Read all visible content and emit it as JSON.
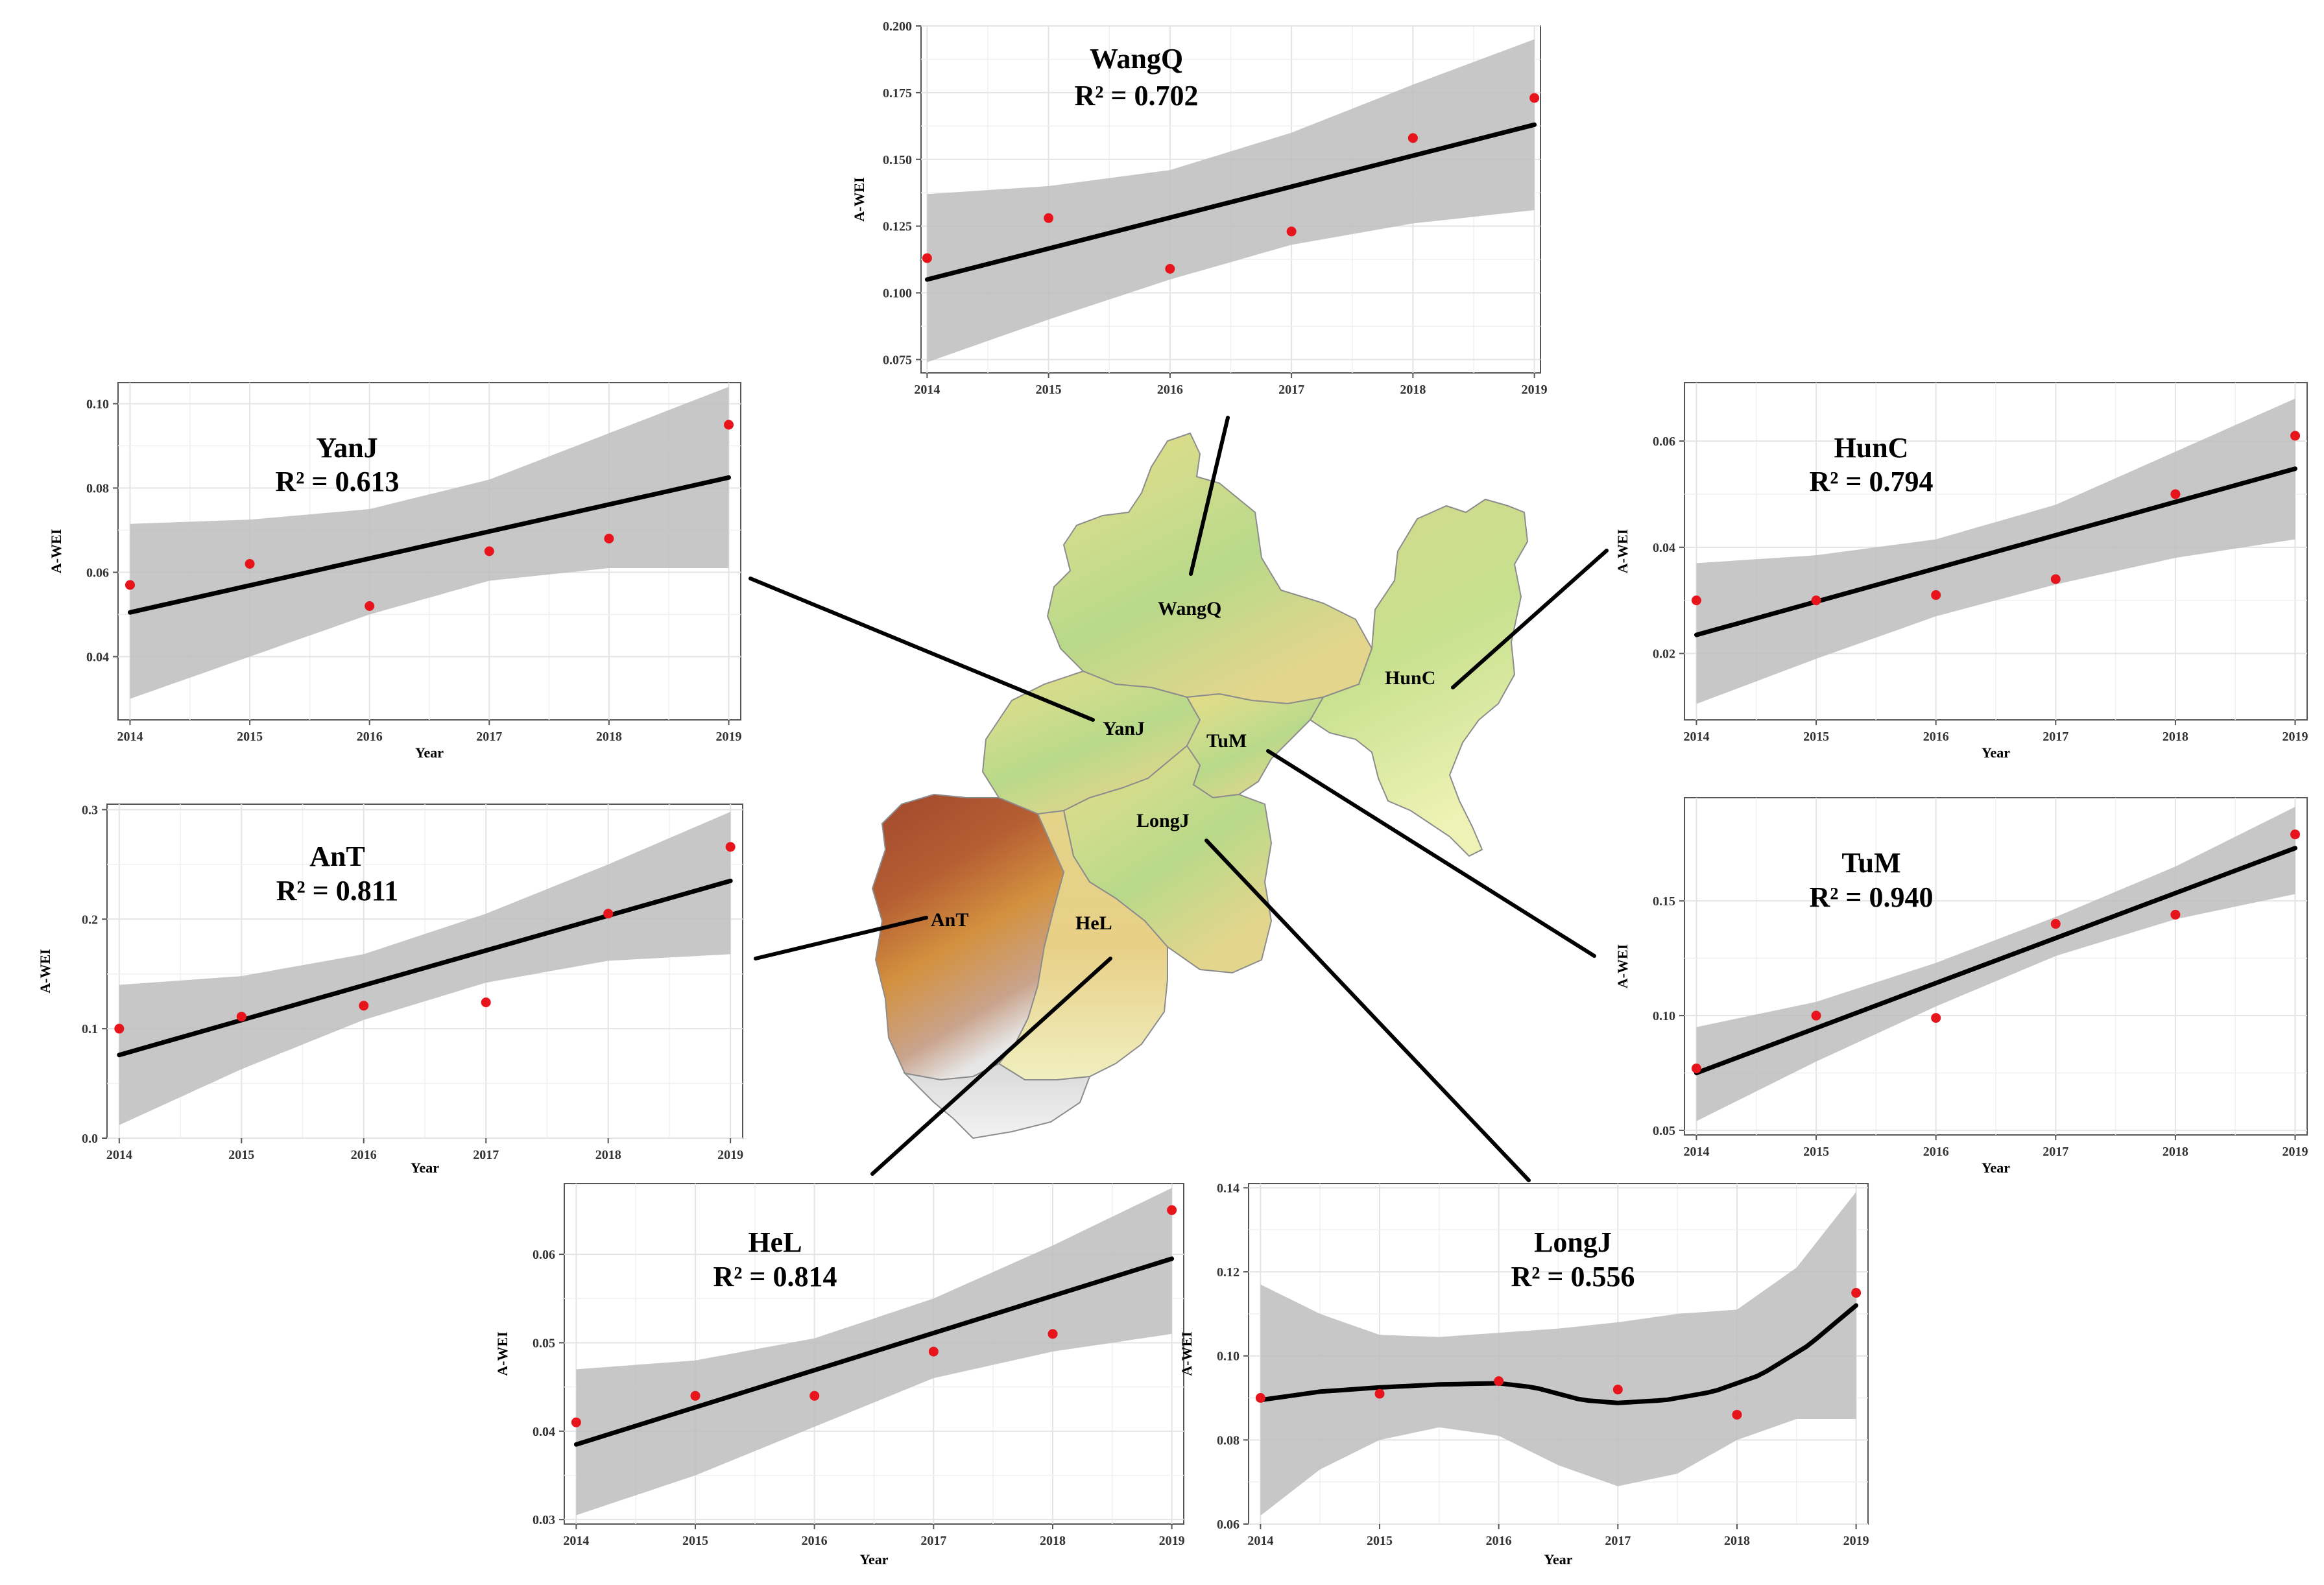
{
  "chart_data": [
    {
      "id": "wangq",
      "type": "scatter",
      "title": "WangQ",
      "r2_label": "R² = 0.702",
      "xlabel": "",
      "ylabel": "A-WEI",
      "x": [
        2014,
        2015,
        2016,
        2017,
        2018,
        2019
      ],
      "values": [
        0.113,
        0.128,
        0.109,
        0.123,
        0.158,
        0.173
      ],
      "fit": [
        [
          2014,
          0.105
        ],
        [
          2019,
          0.163
        ]
      ],
      "ci_lower": [
        [
          2014,
          0.074
        ],
        [
          2015,
          0.09
        ],
        [
          2016,
          0.105
        ],
        [
          2017,
          0.118
        ],
        [
          2018,
          0.126
        ],
        [
          2019,
          0.131
        ]
      ],
      "ci_upper": [
        [
          2014,
          0.137
        ],
        [
          2015,
          0.14
        ],
        [
          2016,
          0.146
        ],
        [
          2017,
          0.16
        ],
        [
          2018,
          0.178
        ],
        [
          2019,
          0.195
        ]
      ],
      "xlim": [
        2013.95,
        2019.05
      ],
      "ylim": [
        0.07,
        0.2
      ],
      "yticks": [
        0.075,
        0.1,
        0.125,
        0.15,
        0.175,
        0.2
      ],
      "ytick_labels": [
        "0.075",
        "0.100",
        "0.125",
        "0.150",
        "0.175",
        "0.200"
      ],
      "xticks": [
        2014,
        2015,
        2016,
        2017,
        2018,
        2019
      ],
      "xtick_labels": [
        "2014",
        "2015",
        "2016",
        "2017",
        "2018",
        "2019"
      ]
    },
    {
      "id": "yanj",
      "type": "scatter",
      "title": "YanJ",
      "r2_label": "R² = 0.613",
      "xlabel": "Year",
      "ylabel": "A-WEI",
      "x": [
        2014,
        2015,
        2016,
        2017,
        2018,
        2019
      ],
      "values": [
        0.057,
        0.062,
        0.052,
        0.065,
        0.068,
        0.095
      ],
      "fit": [
        [
          2014,
          0.0505
        ],
        [
          2019,
          0.0825
        ]
      ],
      "ci_lower": [
        [
          2014,
          0.03
        ],
        [
          2015,
          0.04
        ],
        [
          2016,
          0.05
        ],
        [
          2017,
          0.058
        ],
        [
          2018,
          0.061
        ],
        [
          2019,
          0.061
        ]
      ],
      "ci_upper": [
        [
          2014,
          0.0715
        ],
        [
          2015,
          0.0725
        ],
        [
          2016,
          0.075
        ],
        [
          2017,
          0.082
        ],
        [
          2018,
          0.093
        ],
        [
          2019,
          0.104
        ]
      ],
      "xlim": [
        2013.9,
        2019.1
      ],
      "ylim": [
        0.025,
        0.105
      ],
      "yticks": [
        0.04,
        0.06,
        0.08,
        0.1
      ],
      "ytick_labels": [
        "0.04",
        "0.06",
        "0.08",
        "0.10"
      ],
      "xticks": [
        2014,
        2015,
        2016,
        2017,
        2018,
        2019
      ],
      "xtick_labels": [
        "2014",
        "2015",
        "2016",
        "2017",
        "2018",
        "2019"
      ]
    },
    {
      "id": "hunc",
      "type": "scatter",
      "title": "HunC",
      "r2_label": "R² = 0.794",
      "xlabel": "Year",
      "ylabel": "A-WEI",
      "x": [
        2014,
        2015,
        2016,
        2017,
        2018,
        2019
      ],
      "values": [
        0.03,
        0.03,
        0.031,
        0.034,
        0.05,
        0.061
      ],
      "fit": [
        [
          2014,
          0.0235
        ],
        [
          2019,
          0.0548
        ]
      ],
      "ci_lower": [
        [
          2014,
          0.0105
        ],
        [
          2015,
          0.019
        ],
        [
          2016,
          0.027
        ],
        [
          2017,
          0.033
        ],
        [
          2018,
          0.038
        ],
        [
          2019,
          0.0415
        ]
      ],
      "ci_upper": [
        [
          2014,
          0.037
        ],
        [
          2015,
          0.0385
        ],
        [
          2016,
          0.0415
        ],
        [
          2017,
          0.048
        ],
        [
          2018,
          0.058
        ],
        [
          2019,
          0.068
        ]
      ],
      "xlim": [
        2013.9,
        2019.1
      ],
      "ylim": [
        0.0075,
        0.071
      ],
      "yticks": [
        0.02,
        0.04,
        0.06
      ],
      "ytick_labels": [
        "0.02",
        "0.04",
        "0.06"
      ],
      "xticks": [
        2014,
        2015,
        2016,
        2017,
        2018,
        2019
      ],
      "xtick_labels": [
        "2014",
        "2015",
        "2016",
        "2017",
        "2018",
        "2019"
      ]
    },
    {
      "id": "ant",
      "type": "scatter",
      "title": "AnT",
      "r2_label": "R² = 0.811",
      "xlabel": "Year",
      "ylabel": "A-WEI",
      "x": [
        2014,
        2015,
        2016,
        2017,
        2018,
        2019
      ],
      "values": [
        0.1,
        0.111,
        0.121,
        0.124,
        0.205,
        0.266
      ],
      "fit": [
        [
          2014,
          0.076
        ],
        [
          2019,
          0.235
        ]
      ],
      "ci_lower": [
        [
          2014,
          0.012
        ],
        [
          2015,
          0.063
        ],
        [
          2016,
          0.108
        ],
        [
          2017,
          0.142
        ],
        [
          2018,
          0.162
        ],
        [
          2019,
          0.168
        ]
      ],
      "ci_upper": [
        [
          2014,
          0.14
        ],
        [
          2015,
          0.148
        ],
        [
          2016,
          0.168
        ],
        [
          2017,
          0.205
        ],
        [
          2018,
          0.25
        ],
        [
          2019,
          0.298
        ]
      ],
      "xlim": [
        2013.9,
        2019.1
      ],
      "ylim": [
        0,
        0.305
      ],
      "yticks": [
        0,
        0.1,
        0.2,
        0.3
      ],
      "ytick_labels": [
        "0.0",
        "0.1",
        "0.2",
        "0.3"
      ],
      "xticks": [
        2014,
        2015,
        2016,
        2017,
        2018,
        2019
      ],
      "xtick_labels": [
        "2014",
        "2015",
        "2016",
        "2017",
        "2018",
        "2019"
      ]
    },
    {
      "id": "tum",
      "type": "scatter",
      "title": "TuM",
      "r2_label": "R² = 0.940",
      "xlabel": "Year",
      "ylabel": "A-WEI",
      "x": [
        2014,
        2015,
        2016,
        2017,
        2018,
        2019
      ],
      "values": [
        0.077,
        0.1,
        0.099,
        0.14,
        0.144,
        0.179
      ],
      "fit": [
        [
          2014,
          0.075
        ],
        [
          2019,
          0.173
        ]
      ],
      "ci_lower": [
        [
          2014,
          0.054
        ],
        [
          2015,
          0.08
        ],
        [
          2016,
          0.104
        ],
        [
          2017,
          0.126
        ],
        [
          2018,
          0.142
        ],
        [
          2019,
          0.153
        ]
      ],
      "ci_upper": [
        [
          2014,
          0.095
        ],
        [
          2015,
          0.106
        ],
        [
          2016,
          0.123
        ],
        [
          2017,
          0.143
        ],
        [
          2018,
          0.165
        ],
        [
          2019,
          0.191
        ]
      ],
      "xlim": [
        2013.9,
        2019.1
      ],
      "ylim": [
        0.048,
        0.195
      ],
      "yticks": [
        0.05,
        0.1,
        0.15
      ],
      "ytick_labels": [
        "0.05",
        "0.10",
        "0.15"
      ],
      "xticks": [
        2014,
        2015,
        2016,
        2017,
        2018,
        2019
      ],
      "xtick_labels": [
        "2014",
        "2015",
        "2016",
        "2017",
        "2018",
        "2019"
      ]
    },
    {
      "id": "hel",
      "type": "scatter",
      "title": "HeL",
      "r2_label": "R² = 0.814",
      "xlabel": "Year",
      "ylabel": "A-WEI",
      "x": [
        2014,
        2015,
        2016,
        2017,
        2018,
        2019
      ],
      "values": [
        0.041,
        0.044,
        0.044,
        0.049,
        0.051,
        0.065
      ],
      "fit": [
        [
          2014,
          0.0385
        ],
        [
          2019,
          0.0595
        ]
      ],
      "ci_lower": [
        [
          2014,
          0.0305
        ],
        [
          2015,
          0.035
        ],
        [
          2016,
          0.0405
        ],
        [
          2017,
          0.046
        ],
        [
          2018,
          0.049
        ],
        [
          2019,
          0.051
        ]
      ],
      "ci_upper": [
        [
          2014,
          0.047
        ],
        [
          2015,
          0.048
        ],
        [
          2016,
          0.0505
        ],
        [
          2017,
          0.055
        ],
        [
          2018,
          0.061
        ],
        [
          2019,
          0.0675
        ]
      ],
      "xlim": [
        2013.9,
        2019.1
      ],
      "ylim": [
        0.0295,
        0.068
      ],
      "yticks": [
        0.03,
        0.04,
        0.05,
        0.06
      ],
      "ytick_labels": [
        "0.03",
        "0.04",
        "0.05",
        "0.06"
      ],
      "xticks": [
        2014,
        2015,
        2016,
        2017,
        2018,
        2019
      ],
      "xtick_labels": [
        "2014",
        "2015",
        "2016",
        "2017",
        "2018",
        "2019"
      ]
    },
    {
      "id": "longj",
      "type": "scatter",
      "title": "LongJ",
      "r2_label": "R² = 0.556",
      "xlabel": "Year",
      "ylabel": "A-WEI",
      "x": [
        2014,
        2015,
        2016,
        2017,
        2018,
        2019
      ],
      "values": [
        0.09,
        0.091,
        0.094,
        0.092,
        0.086,
        0.115
      ],
      "fit": [
        [
          2014,
          0.0895
        ],
        [
          2014.5,
          0.0915
        ],
        [
          2015,
          0.0925
        ],
        [
          2015.5,
          0.0932
        ],
        [
          2016,
          0.0935
        ],
        [
          2016.3,
          0.0925
        ],
        [
          2016.7,
          0.0895
        ],
        [
          2017,
          0.0888
        ],
        [
          2017.4,
          0.0895
        ],
        [
          2017.8,
          0.0915
        ],
        [
          2018.2,
          0.0955
        ],
        [
          2018.6,
          0.1025
        ],
        [
          2019,
          0.112
        ]
      ],
      "ci_lower": [
        [
          2014,
          0.062
        ],
        [
          2014.5,
          0.073
        ],
        [
          2015,
          0.08
        ],
        [
          2015.5,
          0.083
        ],
        [
          2016,
          0.081
        ],
        [
          2016.5,
          0.074
        ],
        [
          2017,
          0.069
        ],
        [
          2017.5,
          0.072
        ],
        [
          2018,
          0.08
        ],
        [
          2018.5,
          0.085
        ],
        [
          2019,
          0.085
        ]
      ],
      "ci_upper": [
        [
          2014,
          0.117
        ],
        [
          2014.5,
          0.11
        ],
        [
          2015,
          0.105
        ],
        [
          2015.5,
          0.1045
        ],
        [
          2016,
          0.1055
        ],
        [
          2016.5,
          0.1065
        ],
        [
          2017,
          0.108
        ],
        [
          2017.5,
          0.11
        ],
        [
          2018,
          0.111
        ],
        [
          2018.5,
          0.121
        ],
        [
          2019,
          0.139
        ]
      ],
      "xlim": [
        2013.9,
        2019.1
      ],
      "ylim": [
        0.06,
        0.141
      ],
      "yticks": [
        0.06,
        0.08,
        0.1,
        0.12,
        0.14
      ],
      "ytick_labels": [
        "0.06",
        "0.08",
        "0.10",
        "0.12",
        "0.14"
      ],
      "xticks": [
        2014,
        2015,
        2016,
        2017,
        2018,
        2019
      ],
      "xtick_labels": [
        "2014",
        "2015",
        "2016",
        "2017",
        "2018",
        "2019"
      ]
    }
  ],
  "map": {
    "labels": {
      "wangq": "WangQ",
      "yanj": "YanJ",
      "tum": "TuM",
      "hunc": "HunC",
      "longj": "LongJ",
      "ant": "AnT",
      "hel": "HeL"
    }
  },
  "colors": {
    "point": "#e8141b",
    "fit": "#000000",
    "ci_band": "#bdbdbd",
    "grid": "#e4e4e4",
    "axis": "#555555"
  }
}
